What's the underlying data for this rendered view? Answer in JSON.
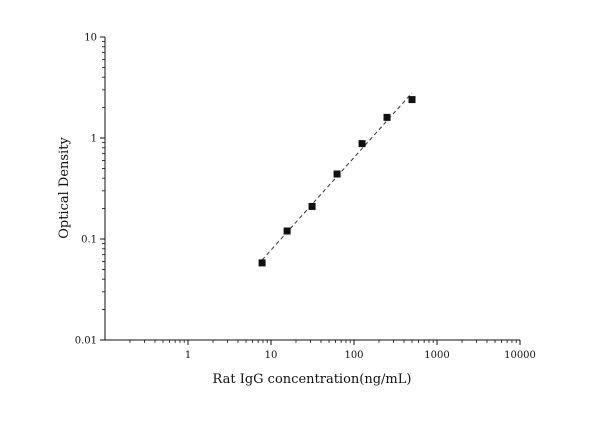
{
  "chart_data": {
    "type": "scatter",
    "title": "",
    "xlabel": "Rat IgG concentration(ng/mL)",
    "ylabel": "Optical Density",
    "x_scale": "log",
    "y_scale": "log",
    "xlim": [
      0.1,
      10000
    ],
    "ylim": [
      0.01,
      10
    ],
    "x_ticks": [
      {
        "value": 1,
        "label": "1"
      },
      {
        "value": 10,
        "label": "10"
      },
      {
        "value": 100,
        "label": "100"
      },
      {
        "value": 1000,
        "label": "1000"
      },
      {
        "value": 10000,
        "label": "10000"
      }
    ],
    "y_ticks": [
      {
        "value": 0.01,
        "label": "0.01"
      },
      {
        "value": 0.1,
        "label": "0.1"
      },
      {
        "value": 1,
        "label": "1"
      },
      {
        "value": 10,
        "label": "10"
      }
    ],
    "grid": false,
    "legend": "none",
    "fit_line": "dashed",
    "series": [
      {
        "x": [
          7.81,
          15.63,
          31.25,
          62.5,
          125,
          250,
          500
        ],
        "y": [
          0.058,
          0.12,
          0.21,
          0.44,
          0.88,
          1.6,
          2.4
        ]
      }
    ],
    "colors": {
      "axis": "#111111",
      "marker": "#111111",
      "line": "#333333"
    }
  }
}
